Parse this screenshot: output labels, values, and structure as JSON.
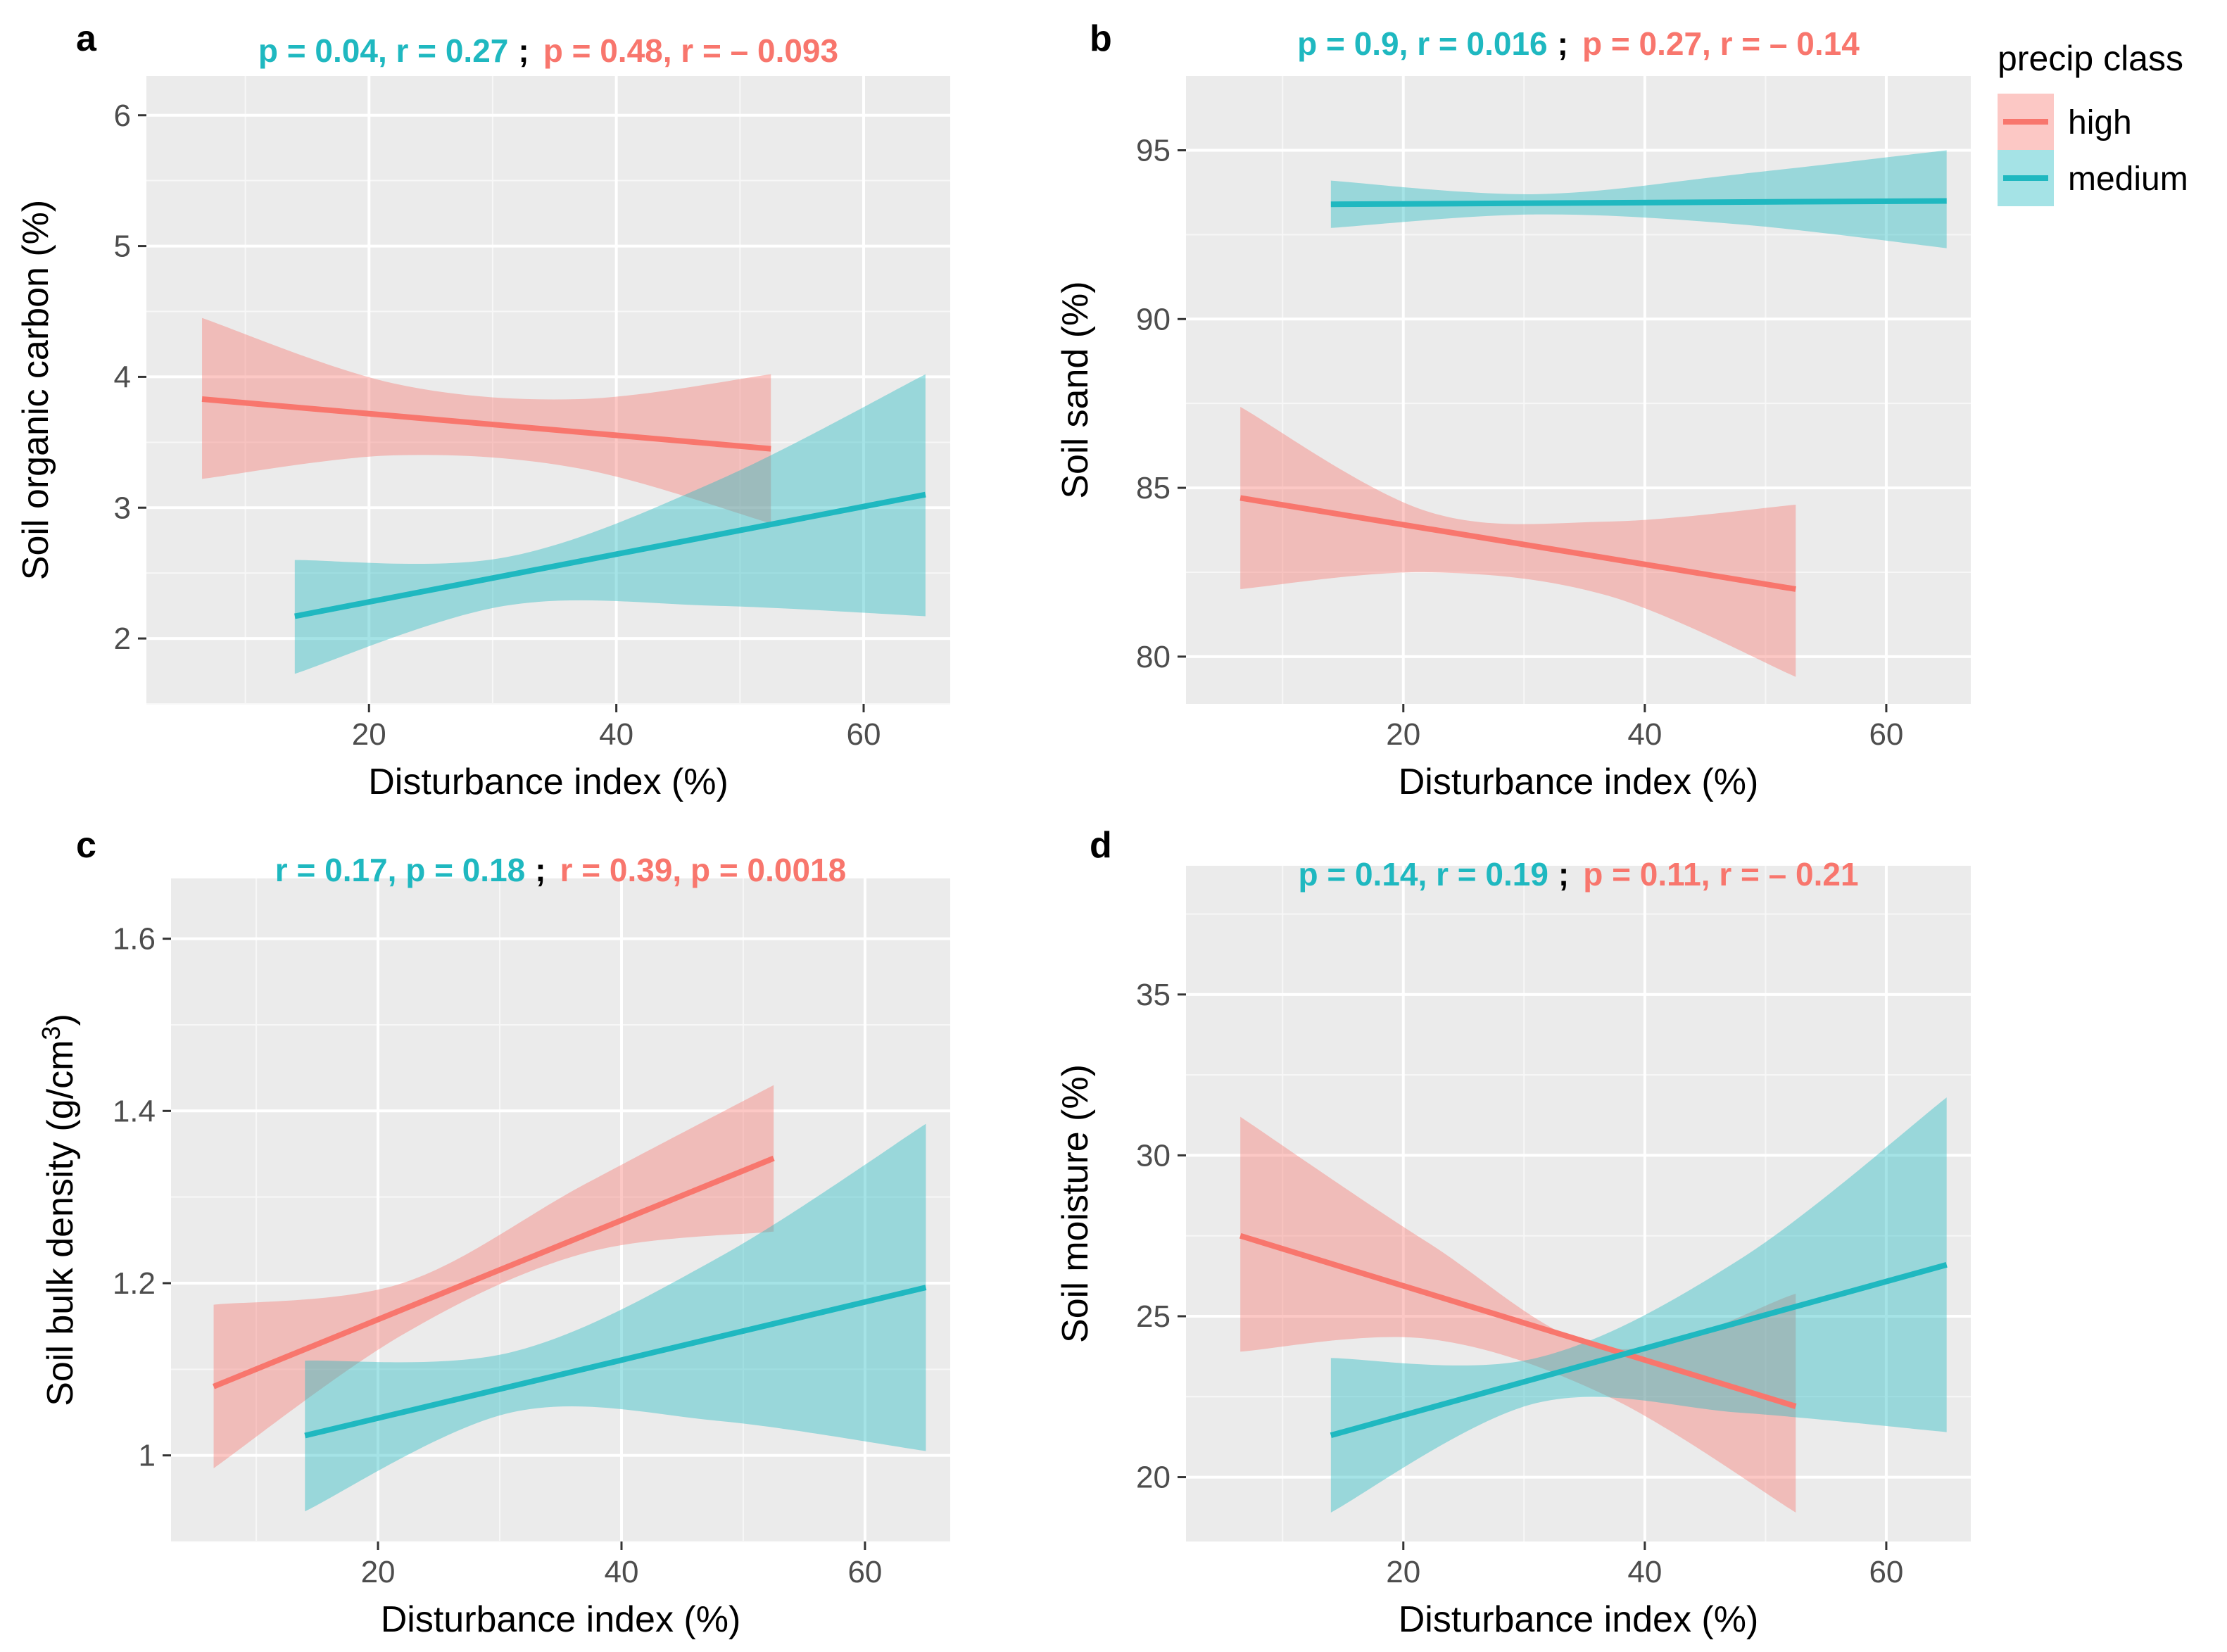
{
  "colors": {
    "high": "#f8766d",
    "medium": "#1fb8c0",
    "panel": "#ebebeb"
  },
  "legend": {
    "title": "precip class",
    "items": [
      {
        "key": "high",
        "label": "high"
      },
      {
        "key": "medium",
        "label": "medium"
      }
    ]
  },
  "chart_data": [
    {
      "panel": "a",
      "type": "line",
      "xlabel": "Disturbance index (%)",
      "ylabel": "Soil organic carbon (%)",
      "xlim": [
        2,
        67
      ],
      "ylim": [
        1.5,
        6.3
      ],
      "xticks": [
        20,
        40,
        60
      ],
      "yticks": [
        2,
        3,
        4,
        5,
        6
      ],
      "stats": [
        {
          "series": "medium",
          "text": "p = 0.04, r = 0.27"
        },
        {
          "sep": ";"
        },
        {
          "series": "high",
          "text": "p = 0.48, r = – 0.093"
        }
      ],
      "series": [
        {
          "name": "high",
          "x": [
            6.5,
            52.5
          ],
          "y": [
            3.83,
            3.45
          ],
          "ci_x": [
            6.5,
            22,
            37,
            52.5
          ],
          "ci_lower": [
            3.22,
            3.4,
            3.3,
            2.88
          ],
          "ci_upper": [
            4.45,
            3.95,
            3.83,
            4.02
          ]
        },
        {
          "name": "medium",
          "x": [
            14,
            65
          ],
          "y": [
            2.17,
            3.1
          ],
          "ci_x": [
            14,
            31,
            48,
            65
          ],
          "ci_lower": [
            1.73,
            2.25,
            2.25,
            2.17
          ],
          "ci_upper": [
            2.6,
            2.62,
            3.2,
            4.02
          ]
        }
      ]
    },
    {
      "panel": "b",
      "type": "line",
      "xlabel": "Disturbance index (%)",
      "ylabel": "Soil sand (%)",
      "xlim": [
        2,
        67
      ],
      "ylim": [
        78.6,
        97.2
      ],
      "xticks": [
        20,
        40,
        60
      ],
      "yticks": [
        80,
        85,
        90,
        95
      ],
      "stats": [
        {
          "series": "medium",
          "text": "p = 0.9, r = 0.016"
        },
        {
          "sep": ";"
        },
        {
          "series": "high",
          "text": "p = 0.27, r = – 0.14"
        }
      ],
      "series": [
        {
          "name": "high",
          "x": [
            6.5,
            52.5
          ],
          "y": [
            84.7,
            82.0
          ],
          "ci_x": [
            6.5,
            22,
            37,
            52.5
          ],
          "ci_lower": [
            82.0,
            82.5,
            81.8,
            79.4
          ],
          "ci_upper": [
            87.4,
            84.3,
            84.0,
            84.5
          ]
        },
        {
          "name": "medium",
          "x": [
            14,
            65
          ],
          "y": [
            93.4,
            93.5
          ],
          "ci_x": [
            14,
            31,
            48,
            65
          ],
          "ci_lower": [
            92.7,
            93.1,
            92.8,
            92.1
          ],
          "ci_upper": [
            94.1,
            93.7,
            94.3,
            95.0
          ]
        }
      ]
    },
    {
      "panel": "c",
      "type": "line",
      "xlabel": "Disturbance index (%)",
      "ylabel": "Soil bulk density (g/cm3)",
      "ylabel_main": "Soil bulk density (g/cm",
      "ylabel_sup": "3",
      "ylabel_end": ")",
      "xlim": [
        3,
        67
      ],
      "ylim": [
        0.9,
        1.67
      ],
      "xticks": [
        20,
        40,
        60
      ],
      "yticks": [
        1.0,
        1.2,
        1.4,
        1.6
      ],
      "stats": [
        {
          "series": "medium",
          "text": "r = 0.17, p = 0.18"
        },
        {
          "sep": ";"
        },
        {
          "series": "high",
          "text": "r = 0.39, p = 0.0018"
        }
      ],
      "series": [
        {
          "name": "high",
          "x": [
            6.5,
            52.5
          ],
          "y": [
            1.08,
            1.345
          ],
          "ci_x": [
            6.5,
            22,
            37,
            52.5
          ],
          "ci_lower": [
            0.985,
            1.14,
            1.235,
            1.26
          ],
          "ci_upper": [
            1.175,
            1.2,
            1.315,
            1.43
          ]
        },
        {
          "name": "medium",
          "x": [
            14,
            65
          ],
          "y": [
            1.023,
            1.195
          ],
          "ci_x": [
            14,
            31,
            48,
            65
          ],
          "ci_lower": [
            0.935,
            1.05,
            1.04,
            1.005
          ],
          "ci_upper": [
            1.11,
            1.12,
            1.23,
            1.385
          ]
        }
      ]
    },
    {
      "panel": "d",
      "type": "line",
      "xlabel": "Disturbance index (%)",
      "ylabel": "Soil moisture (%)",
      "xlim": [
        2,
        67
      ],
      "ylim": [
        18,
        39
      ],
      "xticks": [
        20,
        40,
        60
      ],
      "yticks": [
        20,
        25,
        30,
        35
      ],
      "stats": [
        {
          "series": "medium",
          "text": "p = 0.14, r = 0.19"
        },
        {
          "sep": ";"
        },
        {
          "series": "high",
          "text": "p = 0.11, r = – 0.21"
        }
      ],
      "series": [
        {
          "name": "high",
          "x": [
            6.5,
            52.5
          ],
          "y": [
            27.5,
            22.2
          ],
          "ci_x": [
            6.5,
            22,
            37,
            52.5
          ],
          "ci_lower": [
            23.9,
            24.3,
            22.5,
            18.9
          ],
          "ci_upper": [
            31.2,
            27.3,
            24.0,
            25.7
          ]
        },
        {
          "name": "medium",
          "x": [
            14,
            65
          ],
          "y": [
            21.3,
            26.6
          ],
          "ci_x": [
            14,
            31,
            48,
            65
          ],
          "ci_lower": [
            18.9,
            22.3,
            22.0,
            21.4
          ],
          "ci_upper": [
            23.7,
            23.7,
            26.8,
            31.8
          ]
        }
      ]
    }
  ]
}
